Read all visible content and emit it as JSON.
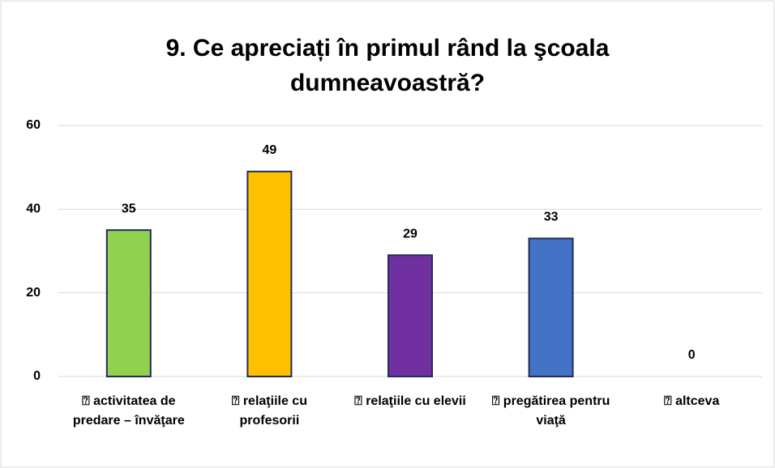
{
  "chart_data": {
    "type": "bar",
    "title": "9. Ce apreciați în primul rând la şcoala dumneavoastră?",
    "categories": [
      "⍰ activitatea de predare – învăţare",
      "⍰ relaţiile cu profesorii",
      "⍰ relaţiile cu elevii",
      "⍰ pregătirea pentru viaţă",
      "⍰ altceva"
    ],
    "values": [
      35,
      49,
      29,
      33,
      0
    ],
    "colors": [
      "#92d050",
      "#ffc000",
      "#7030a0",
      "#4472c4",
      "#a5a5a5"
    ],
    "ylim": [
      0,
      60
    ],
    "yticks": [
      0,
      20,
      40,
      60
    ],
    "grid": true
  }
}
